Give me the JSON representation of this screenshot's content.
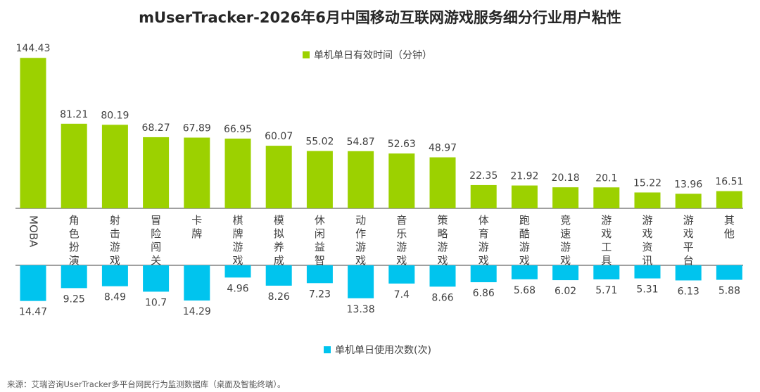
{
  "title": "mUserTracker-2026年6月中国移动互联网游戏服务细分行业用户粘性",
  "source": "来源：艾瑞咨询UserTracker多平台网民行为监测数据库（桌面及智能终端）。",
  "colors": {
    "green": "#9CD100",
    "cyan": "#00C4EE",
    "text": "#404040",
    "axis": "#404040"
  },
  "chart_data": {
    "type": "bar",
    "categories": [
      "MOBA",
      "角色扮演",
      "射击游戏",
      "冒险闯关",
      "卡牌",
      "棋牌游戏",
      "模拟养成",
      "休闲益智",
      "动作游戏",
      "音乐游戏",
      "策略游戏",
      "体育游戏",
      "跑酷游戏",
      "竞速游戏",
      "游戏工具",
      "游戏资讯",
      "游戏平台",
      "其他"
    ],
    "series": [
      {
        "name": "单机单日有效时间（分钟）",
        "values": [
          144.43,
          81.21,
          80.19,
          68.27,
          67.89,
          66.95,
          60.07,
          55.02,
          54.87,
          52.63,
          48.97,
          22.35,
          21.92,
          20.18,
          20.1,
          15.22,
          13.96,
          16.51
        ],
        "labels": [
          "144.43",
          "81.21",
          "80.19",
          "68.27",
          "67.89",
          "66.95",
          "60.07",
          "55.02",
          "54.87",
          "52.63",
          "48.97",
          "22.35",
          "21.92",
          "20.18",
          "20.1",
          "15.22",
          "13.96",
          "16.51"
        ],
        "direction": "up",
        "color": "#9CD100"
      },
      {
        "name": "单机单日使用次数(次)",
        "values": [
          14.47,
          9.25,
          8.49,
          10.7,
          14.29,
          4.96,
          8.26,
          7.23,
          13.38,
          7.4,
          8.66,
          6.86,
          5.68,
          6.02,
          5.71,
          5.31,
          6.13,
          5.88
        ],
        "labels": [
          "14.47",
          "9.25",
          "8.49",
          "10.7",
          "14.29",
          "4.96",
          "8.26",
          "7.23",
          "13.38",
          "7.4",
          "8.66",
          "6.86",
          "5.68",
          "6.02",
          "5.71",
          "5.31",
          "6.13",
          "5.88"
        ],
        "direction": "down",
        "color": "#00C4EE"
      }
    ],
    "legend": [
      "top-center",
      "bottom-center"
    ],
    "grid": false
  }
}
